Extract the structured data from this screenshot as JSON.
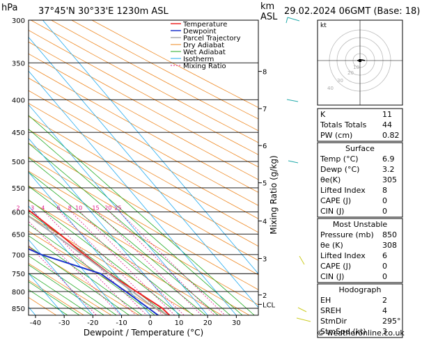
{
  "header": {
    "hpa_label": "hPa",
    "location": "37°45'N  30°33'E  1230m  ASL",
    "km_label": "km",
    "asl_label": "ASL",
    "datetime": "29.02.2024  06GMT  (Base: 18)"
  },
  "colors": {
    "temperature": "#ee2222",
    "dewpoint": "#1a33cc",
    "parcel": "#aaaaaa",
    "dry_adiabat": "#ee8822",
    "wet_adiabat": "#22aa22",
    "isotherm": "#22aaee",
    "mixing_ratio": "#e0178a"
  },
  "chart_data": {
    "type": "skew-t",
    "xlabel": "Dewpoint / Temperature (°C)",
    "ylabel_right": "Mixing Ratio (g/kg)",
    "x_ticks": [
      "-40",
      "-30",
      "-20",
      "-10",
      "0",
      "10",
      "20",
      "30"
    ],
    "pressure_ticks": [
      "300",
      "350",
      "400",
      "450",
      "500",
      "550",
      "600",
      "650",
      "700",
      "750",
      "800",
      "850"
    ],
    "km_ticks": [
      {
        "label": "8",
        "p": 361
      },
      {
        "label": "7",
        "p": 413
      },
      {
        "label": "6",
        "p": 472
      },
      {
        "label": "5",
        "p": 540
      },
      {
        "label": "4",
        "p": 620
      },
      {
        "label": "3",
        "p": 710
      },
      {
        "label": "2",
        "p": 810
      },
      {
        "label": "LCL",
        "p": 838
      }
    ],
    "mixing_ratio_labels": [
      "1",
      "2",
      "3",
      "4",
      "6",
      "8",
      "10",
      "15",
      "20",
      "25"
    ],
    "legend": [
      "Temperature",
      "Dewpoint",
      "Parcel Trajectory",
      "Dry Adiabat",
      "Wet Adiabat",
      "Isotherm",
      "Mixing Ratio"
    ],
    "series": [
      {
        "name": "Temperature",
        "points": [
          [
            880,
            6.9
          ],
          [
            850,
            6.3
          ],
          [
            800,
            2.2
          ],
          [
            750,
            -2.0
          ],
          [
            700,
            -5.0
          ],
          [
            650,
            -7.5
          ],
          [
            600,
            -11.0
          ],
          [
            550,
            -15.0
          ],
          [
            500,
            -20.0
          ],
          [
            450,
            -27.0
          ],
          [
            400,
            -33.0
          ],
          [
            350,
            -40.5
          ],
          [
            300,
            -50.0
          ]
        ]
      },
      {
        "name": "Dewpoint",
        "points": [
          [
            880,
            3.2
          ],
          [
            850,
            1.5
          ],
          [
            800,
            -1.5
          ],
          [
            750,
            -5.0
          ],
          [
            700,
            -20.0
          ],
          [
            650,
            -30.0
          ],
          [
            600,
            -37.0
          ],
          [
            550,
            -42.0
          ],
          [
            500,
            -30.0
          ],
          [
            450,
            -31.0
          ],
          [
            400,
            -38.0
          ],
          [
            350,
            -48.0
          ],
          [
            300,
            -62.0
          ]
        ]
      }
    ]
  },
  "indices": {
    "rows": [
      {
        "label": "K",
        "value": "11"
      },
      {
        "label": "Totals Totals",
        "value": "44"
      },
      {
        "label": "PW (cm)",
        "value": "0.82"
      }
    ]
  },
  "surface": {
    "title": "Surface",
    "rows": [
      {
        "label": "Temp (°C)",
        "value": "6.9"
      },
      {
        "label": "Dewp (°C)",
        "value": "3.2"
      },
      {
        "label": "θe(K)",
        "value": "305"
      },
      {
        "label": "Lifted Index",
        "value": "8"
      },
      {
        "label": "CAPE (J)",
        "value": "0"
      },
      {
        "label": "CIN (J)",
        "value": "0"
      }
    ]
  },
  "most_unstable": {
    "title": "Most Unstable",
    "rows": [
      {
        "label": "Pressure (mb)",
        "value": "850"
      },
      {
        "label": "θe (K)",
        "value": "308"
      },
      {
        "label": "Lifted Index",
        "value": "6"
      },
      {
        "label": "CAPE (J)",
        "value": "0"
      },
      {
        "label": "CIN (J)",
        "value": "0"
      }
    ]
  },
  "hodograph_table": {
    "title": "Hodograph",
    "rows": [
      {
        "label": "EH",
        "value": "2"
      },
      {
        "label": "SREH",
        "value": "4"
      },
      {
        "label": "StmDir",
        "value": "295°"
      },
      {
        "label": "StmSpd (kt)",
        "value": "3"
      }
    ]
  },
  "hodograph": {
    "label": "kt",
    "ring_labels": [
      "10",
      "20",
      "30",
      "40"
    ]
  },
  "footer": {
    "copyright": "© weatheronline.co.uk"
  }
}
